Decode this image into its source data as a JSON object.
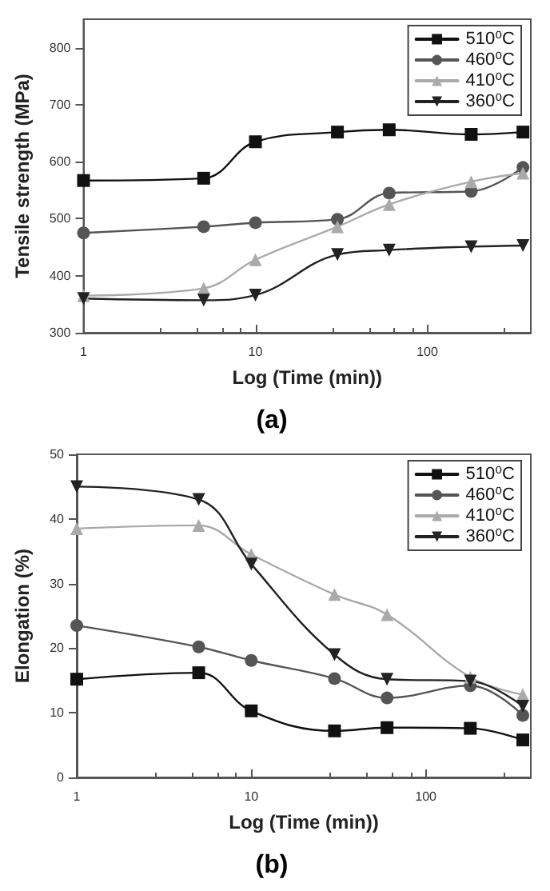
{
  "chart_data": [
    {
      "type": "line",
      "title": "(a)",
      "xlabel": "Log (Time (min))",
      "ylabel": "Tensile strength (MPa)",
      "log": "x",
      "x": [
        1,
        5,
        10,
        30,
        60,
        180,
        360
      ],
      "xlim": [
        1,
        400
      ],
      "xticks": [
        1,
        10,
        100
      ],
      "ylim": [
        300,
        850
      ],
      "yticks": [
        300,
        400,
        500,
        600,
        700,
        800
      ],
      "grid": false,
      "legend": "top right",
      "line_style": "solid",
      "series": [
        {
          "name": "510⁰C",
          "color": "#111111",
          "marker": "square",
          "values": [
            567,
            571,
            635,
            652,
            656,
            648,
            652
          ]
        },
        {
          "name": "460⁰C",
          "color": "#555555",
          "marker": "circle",
          "values": [
            475,
            486,
            493,
            499,
            545,
            548,
            590
          ]
        },
        {
          "name": "410⁰C",
          "color": "#aaaaaa",
          "marker": "triangle",
          "values": [
            365,
            378,
            428,
            486,
            525,
            565,
            580
          ]
        },
        {
          "name": "360⁰C",
          "color": "#222222",
          "marker": "triangle-down",
          "values": [
            360,
            357,
            366,
            437,
            445,
            451,
            453
          ]
        }
      ]
    },
    {
      "type": "line",
      "title": "(b)",
      "xlabel": "Log (Time (min))",
      "ylabel": "Elongation (%)",
      "log": "x",
      "x": [
        1,
        5,
        10,
        30,
        60,
        180,
        360
      ],
      "xlim": [
        1,
        400
      ],
      "xticks": [
        1,
        10,
        100
      ],
      "ylim": [
        0,
        50
      ],
      "yticks": [
        0,
        10,
        20,
        30,
        40,
        50
      ],
      "grid": false,
      "legend": "top right",
      "line_style": "solid",
      "series": [
        {
          "name": "510⁰C",
          "color": "#111111",
          "marker": "square",
          "values": [
            15.2,
            16.2,
            10.3,
            7.2,
            7.7,
            7.6,
            5.8
          ]
        },
        {
          "name": "460⁰C",
          "color": "#555555",
          "marker": "circle",
          "values": [
            23.5,
            20.2,
            18.1,
            15.3,
            12.3,
            14.2,
            9.6
          ]
        },
        {
          "name": "410⁰C",
          "color": "#aaaaaa",
          "marker": "triangle",
          "values": [
            38.5,
            39,
            34.5,
            28.3,
            25.2,
            15.5,
            12.8
          ]
        },
        {
          "name": "360⁰C",
          "color": "#222222",
          "marker": "triangle-down",
          "values": [
            45,
            43,
            33,
            19,
            15.2,
            14.9,
            11
          ]
        }
      ]
    }
  ]
}
